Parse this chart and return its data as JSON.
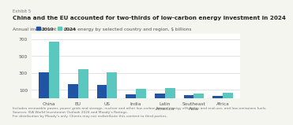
{
  "exhibit_label": "Exhibit 5",
  "title": "China and the EU accounted for two-thirds of low-carbon energy investment in 2024",
  "subtitle": "Annual investment in clean energy by selected country and region, $ billions",
  "categories": [
    "China",
    "EU",
    "US",
    "India",
    "Latin\nAmerica",
    "Southeast\nAsia",
    "Africa"
  ],
  "values_2019": [
    310,
    170,
    160,
    45,
    60,
    40,
    30
  ],
  "values_2024": [
    670,
    340,
    310,
    115,
    120,
    60,
    65
  ],
  "color_2019": "#2155a3",
  "color_2024": "#5bc8c0",
  "yticks": [
    100,
    300,
    500,
    700
  ],
  "ylim": [
    0,
    760
  ],
  "legend_labels": [
    "2019",
    "2024"
  ],
  "footnote": "Includes renewable power, power grids and storage, nuclear and other low-carbon power, energy efficiency and end-use, and low-emissions fuels.\nSources: IEA World Investment Outlook 2024 and Moody's Ratings.\nFor distribution by Moody's only. Clients may not redistribute this content to third parties.",
  "background_color": "#f5f5f0",
  "plot_bg_color": "#ffffff",
  "title_fontsize": 5.2,
  "subtitle_fontsize": 4.2,
  "exhibit_fontsize": 3.8,
  "tick_fontsize": 4.2,
  "legend_fontsize": 4.5,
  "footnote_fontsize": 3.2
}
